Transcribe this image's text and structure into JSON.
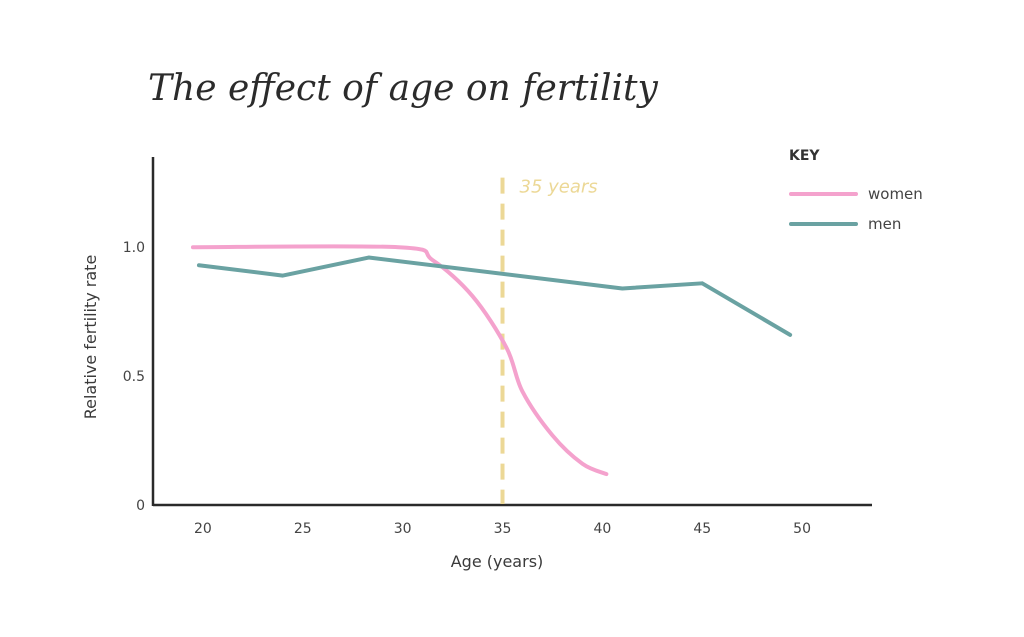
{
  "chart_data": {
    "type": "line",
    "title": "The effect of age on fertility",
    "xlabel": "Age (years)",
    "ylabel": "Relative fertility rate",
    "xlim": [
      17.5,
      53.5
    ],
    "ylim": [
      0,
      1.35
    ],
    "x_ticks": [
      20,
      25,
      30,
      35,
      40,
      45,
      50
    ],
    "x_tick_labels": [
      "20",
      "25",
      "30",
      "35",
      "40",
      "45",
      "50"
    ],
    "y_ticks": [
      0,
      0.5,
      1.0
    ],
    "y_tick_labels": [
      "0",
      "0.5",
      "1.0"
    ],
    "grid": false,
    "legend_title": "KEY",
    "legend_position": "top-right",
    "series": [
      {
        "name": "women",
        "color": "#f4a2cd",
        "x": [
          19.5,
          29.8,
          31.5,
          33.5,
          35.2,
          36.0,
          37.5,
          39.0,
          40.2
        ],
        "y": [
          1.0,
          1.0,
          0.95,
          0.81,
          0.61,
          0.44,
          0.27,
          0.16,
          0.12
        ]
      },
      {
        "name": "men",
        "color": "#6aa2a2",
        "x": [
          19.8,
          24.0,
          28.3,
          41.0,
          45.0,
          49.4
        ],
        "y": [
          0.93,
          0.89,
          0.96,
          0.84,
          0.86,
          0.66
        ]
      }
    ],
    "annotations": [
      {
        "type": "vline",
        "x": 35,
        "y_top": 1.27,
        "color": "#ecd896",
        "label": "35 years"
      }
    ]
  }
}
